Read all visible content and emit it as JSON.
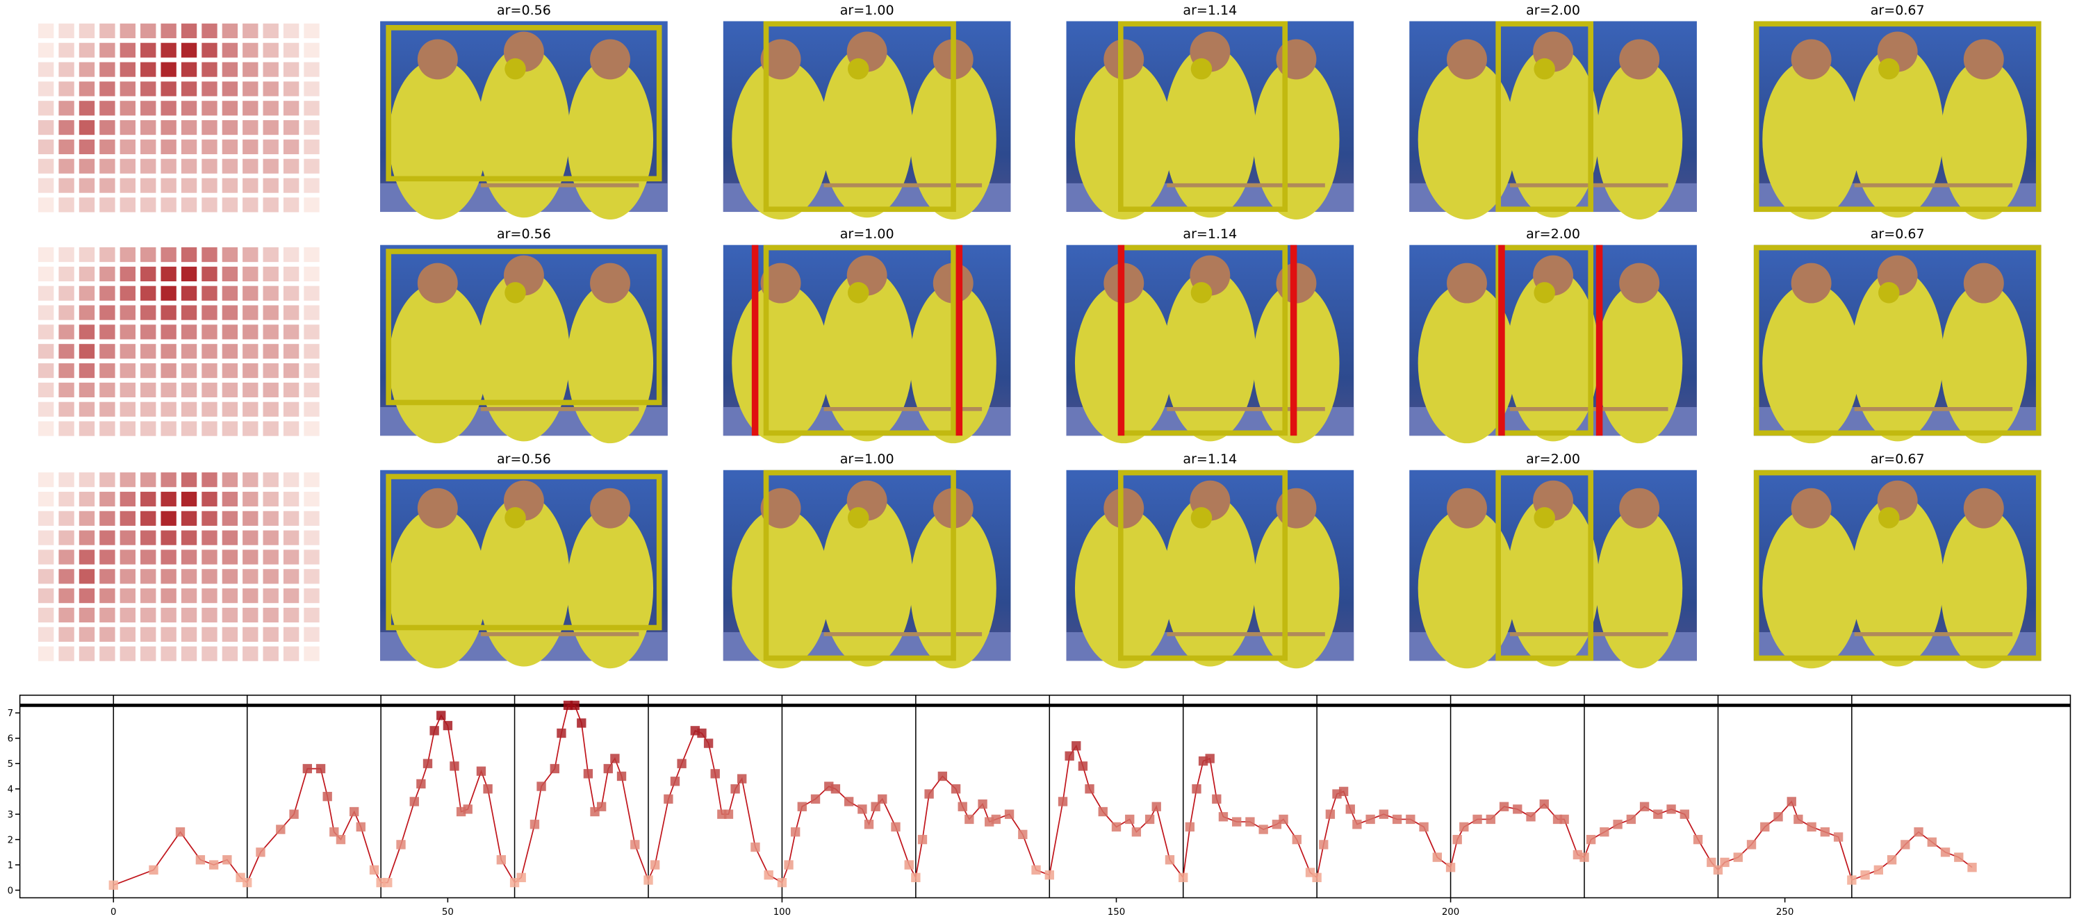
{
  "panels": [
    {
      "titles": [
        "ar=0.56",
        "ar=1.00",
        "ar=1.14",
        "ar=2.00",
        "ar=0.67"
      ]
    },
    {
      "titles": [
        "ar=0.56",
        "ar=1.00",
        "ar=1.14",
        "ar=2.00",
        "ar=0.67"
      ]
    },
    {
      "titles": [
        "ar=0.56",
        "ar=1.00",
        "ar=1.14",
        "ar=2.00",
        "ar=0.67"
      ]
    }
  ],
  "chart_data": [
    {
      "type": "line",
      "x": [
        0,
        6,
        10,
        13,
        15,
        17,
        19,
        20,
        22,
        25,
        27,
        29,
        31,
        32,
        33,
        34,
        36,
        37,
        39,
        40,
        41,
        43,
        45,
        46,
        47,
        48,
        49,
        50,
        51,
        52,
        53,
        55,
        56,
        58,
        60,
        61,
        63,
        64,
        66,
        67,
        68,
        69,
        70,
        71,
        72,
        73,
        74,
        75,
        76,
        78,
        80,
        81,
        83,
        84,
        85,
        87,
        88,
        89,
        90,
        91,
        92,
        93,
        94,
        96,
        98,
        100,
        101,
        102,
        103,
        105,
        107,
        108,
        110,
        112,
        113,
        114,
        115,
        117,
        119,
        120,
        121,
        122,
        124,
        126,
        127,
        128,
        130,
        131,
        132,
        134,
        136,
        138,
        140,
        142,
        143,
        144,
        145,
        146,
        148,
        150,
        152,
        153,
        155,
        156,
        158,
        160,
        161,
        162,
        163,
        164,
        165,
        166,
        168,
        170,
        172,
        174,
        175,
        177,
        179,
        180,
        181,
        182,
        183,
        184,
        185,
        186,
        188,
        190,
        192,
        194,
        196,
        198,
        200,
        201,
        202,
        204,
        206,
        208,
        210,
        212,
        214,
        216,
        217,
        219,
        220,
        221,
        223,
        225,
        227,
        229,
        231,
        233,
        235,
        237,
        239,
        240,
        241,
        243,
        245,
        247,
        249,
        251,
        252,
        254,
        256,
        258,
        260,
        262,
        264,
        266,
        268,
        270,
        272,
        274,
        276,
        278
      ],
      "values": [
        0.2,
        0.8,
        2.3,
        1.2,
        1.0,
        1.2,
        0.5,
        0.3,
        1.5,
        2.4,
        3.0,
        4.8,
        4.8,
        3.7,
        2.3,
        2.0,
        3.1,
        2.5,
        0.8,
        0.3,
        0.3,
        1.8,
        3.5,
        4.2,
        5.0,
        6.3,
        6.9,
        6.5,
        4.9,
        3.1,
        3.2,
        4.7,
        4.0,
        1.2,
        0.3,
        0.5,
        2.6,
        4.1,
        4.8,
        6.2,
        7.3,
        7.3,
        6.6,
        4.6,
        3.1,
        3.3,
        4.8,
        5.2,
        4.5,
        1.8,
        0.4,
        1.0,
        3.6,
        4.3,
        5.0,
        6.3,
        6.2,
        5.8,
        4.6,
        3.0,
        3.0,
        4.0,
        4.4,
        1.7,
        0.6,
        0.3,
        1.0,
        2.3,
        3.3,
        3.6,
        4.1,
        4.0,
        3.5,
        3.2,
        2.6,
        3.3,
        3.6,
        2.5,
        1.0,
        0.5,
        2.0,
        3.8,
        4.5,
        4.0,
        3.3,
        2.8,
        3.4,
        2.7,
        2.8,
        3.0,
        2.2,
        0.8,
        0.6,
        3.5,
        5.3,
        5.7,
        4.9,
        4.0,
        3.1,
        2.5,
        2.8,
        2.3,
        2.8,
        3.3,
        1.2,
        0.5,
        2.5,
        4.0,
        5.1,
        5.2,
        3.6,
        2.9,
        2.7,
        2.7,
        2.4,
        2.6,
        2.8,
        2.0,
        0.7,
        0.5,
        1.8,
        3.0,
        3.8,
        3.9,
        3.2,
        2.6,
        2.8,
        3.0,
        2.8,
        2.8,
        2.5,
        1.3,
        0.9,
        2.0,
        2.5,
        2.8,
        2.8,
        3.3,
        3.2,
        2.9,
        3.4,
        2.8,
        2.8,
        1.4,
        1.3,
        2.0,
        2.3,
        2.6,
        2.8,
        3.3,
        3.0,
        3.2,
        3.0,
        2.0,
        1.1,
        0.8,
        1.1,
        1.3,
        1.8,
        2.5,
        2.9,
        3.5,
        2.8,
        2.5,
        2.3,
        2.1,
        0.4,
        0.6,
        0.8,
        1.2,
        1.8,
        2.3,
        1.9,
        1.5,
        1.3,
        0.9
      ],
      "line_color": "#c0141b",
      "marker_colors": [
        "#fcbba1",
        "#99000d"
      ],
      "xlim": [
        -14,
        292.7
      ],
      "ylim": [
        -0.3,
        7.7
      ],
      "xticks": [
        0,
        50,
        100,
        150,
        200,
        250
      ],
      "yticks": [
        0,
        1,
        2,
        3,
        4,
        5,
        6,
        7
      ],
      "vlines": [
        0,
        20,
        40,
        60,
        80,
        100,
        120,
        140,
        160,
        180,
        200,
        220,
        240,
        260
      ],
      "hline": 7.3
    },
    {
      "type": "heatmap",
      "zlim": [
        0,
        1
      ],
      "colors": [
        "#fff5f0",
        "#a50f15"
      ],
      "values": [
        [
          0.05,
          0.1,
          0.15,
          0.25,
          0.35,
          0.4,
          0.5,
          0.6,
          0.55,
          0.4,
          0.3,
          0.2,
          0.1,
          0.05
        ],
        [
          0.05,
          0.15,
          0.25,
          0.4,
          0.55,
          0.7,
          0.85,
          0.9,
          0.7,
          0.5,
          0.35,
          0.25,
          0.15,
          0.05
        ],
        [
          0.1,
          0.2,
          0.35,
          0.5,
          0.6,
          0.75,
          0.9,
          0.8,
          0.65,
          0.5,
          0.4,
          0.3,
          0.2,
          0.1
        ],
        [
          0.1,
          0.25,
          0.45,
          0.55,
          0.5,
          0.6,
          0.7,
          0.65,
          0.55,
          0.5,
          0.4,
          0.35,
          0.25,
          0.1
        ],
        [
          0.15,
          0.4,
          0.6,
          0.55,
          0.45,
          0.5,
          0.55,
          0.5,
          0.45,
          0.45,
          0.4,
          0.35,
          0.3,
          0.15
        ],
        [
          0.2,
          0.5,
          0.65,
          0.5,
          0.4,
          0.4,
          0.45,
          0.4,
          0.4,
          0.4,
          0.35,
          0.35,
          0.3,
          0.15
        ],
        [
          0.2,
          0.45,
          0.55,
          0.45,
          0.35,
          0.35,
          0.4,
          0.35,
          0.35,
          0.35,
          0.35,
          0.3,
          0.3,
          0.15
        ],
        [
          0.15,
          0.35,
          0.4,
          0.35,
          0.3,
          0.3,
          0.3,
          0.3,
          0.3,
          0.3,
          0.3,
          0.3,
          0.25,
          0.15
        ],
        [
          0.1,
          0.25,
          0.3,
          0.3,
          0.25,
          0.25,
          0.25,
          0.25,
          0.25,
          0.25,
          0.25,
          0.25,
          0.2,
          0.1
        ],
        [
          0.05,
          0.15,
          0.2,
          0.2,
          0.2,
          0.2,
          0.2,
          0.2,
          0.2,
          0.2,
          0.2,
          0.2,
          0.15,
          0.05
        ]
      ]
    }
  ]
}
